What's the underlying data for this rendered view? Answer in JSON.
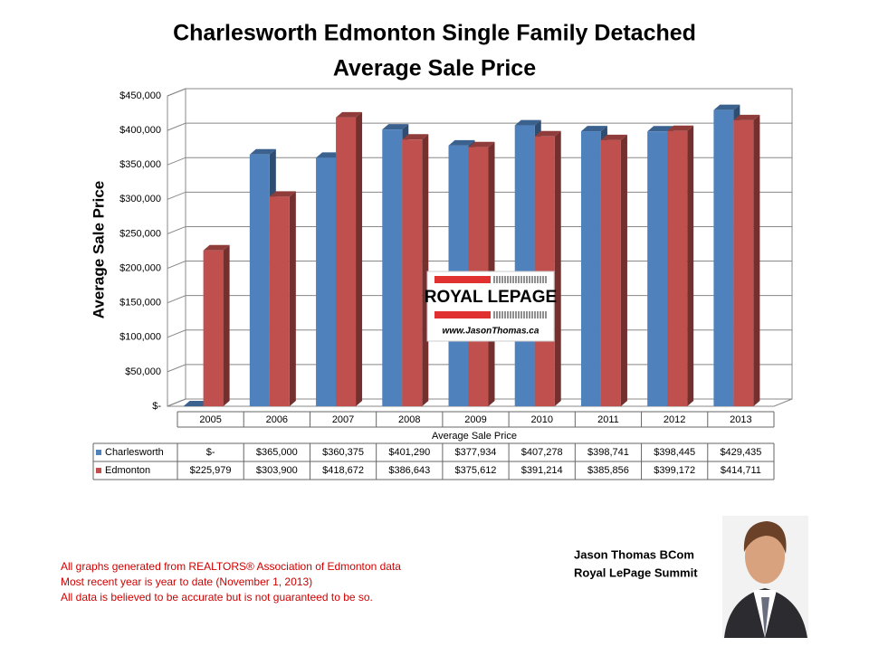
{
  "chart_data": {
    "type": "bar",
    "title": "Charlesworth Edmonton Single Family Detached",
    "subtitle": "Average Sale Price",
    "y_label": "Average Sale Price",
    "table_title": "Average Sale Price",
    "categories": [
      "2005",
      "2006",
      "2007",
      "2008",
      "2009",
      "2010",
      "2011",
      "2012",
      "2013"
    ],
    "series": [
      {
        "name": "Charlesworth",
        "color": "#4f81bd",
        "values": [
          0,
          365000,
          360375,
          401290,
          377934,
          407278,
          398741,
          398445,
          429435
        ],
        "value_labels": [
          "$-",
          "$365,000",
          "$360,375",
          "$401,290",
          "$377,934",
          "$407,278",
          "$398,741",
          "$398,445",
          "$429,435"
        ]
      },
      {
        "name": "Edmonton",
        "color": "#c0504d",
        "values": [
          225979,
          303900,
          418672,
          386643,
          375612,
          391214,
          385856,
          399172,
          414711
        ],
        "value_labels": [
          "$225,979",
          "$303,900",
          "$418,672",
          "$386,643",
          "$375,612",
          "$391,214",
          "$385,856",
          "$399,172",
          "$414,711"
        ]
      }
    ],
    "ylim": [
      0,
      450000
    ],
    "yticks": [
      {
        "value": 0,
        "label": "$-"
      },
      {
        "value": 50000,
        "label": "$50,000"
      },
      {
        "value": 100000,
        "label": "$100,000"
      },
      {
        "value": 150000,
        "label": "$150,000"
      },
      {
        "value": 200000,
        "label": "$200,000"
      },
      {
        "value": 250000,
        "label": "$250,000"
      },
      {
        "value": 300000,
        "label": "$300,000"
      },
      {
        "value": 350000,
        "label": "$350,000"
      },
      {
        "value": 400000,
        "label": "$400,000"
      },
      {
        "value": 450000,
        "label": "$450,000"
      }
    ],
    "grid": true
  },
  "logo": {
    "brand": "ROYAL LEPAGE",
    "url": "www.JasonThomas.ca"
  },
  "agent": {
    "name": "Jason Thomas BCom",
    "company": "Royal LePage Summit"
  },
  "notes": [
    "All graphs generated from REALTORS® Association of Edmonton data",
    "Most recent year is year to date (November 1, 2013)",
    "All data is believed to be accurate but is not guaranteed to be so."
  ]
}
